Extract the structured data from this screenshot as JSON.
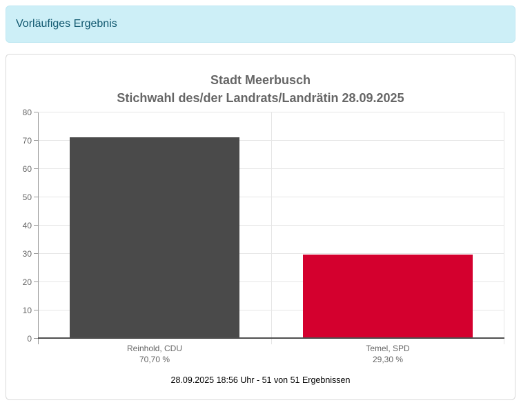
{
  "banner": {
    "label": "Vorläufiges Ergebnis"
  },
  "colors": {
    "banner_background": "#cdeff7",
    "banner_text": "#11586f",
    "cdu_bar": "#4a4a4a",
    "spd_bar": "#d4002e"
  },
  "chart_data": {
    "type": "bar",
    "title": "Stadt Meerbusch",
    "subtitle": "Stichwahl des/der Landrats/Landrätin 28.09.2025",
    "categories": [
      "Reinhold, CDU",
      "Temel, SPD"
    ],
    "values": [
      70.7,
      29.3
    ],
    "value_labels": [
      "70,70 %",
      "29,30 %"
    ],
    "bar_colors": [
      "#4a4a4a",
      "#d4002e"
    ],
    "xlabel": "",
    "ylabel": "",
    "ylim": [
      0,
      80
    ],
    "ytick_step": 10,
    "grid": true,
    "legend": "none",
    "footer": "28.09.2025 18:56 Uhr - 51 von 51 Ergebnissen"
  }
}
